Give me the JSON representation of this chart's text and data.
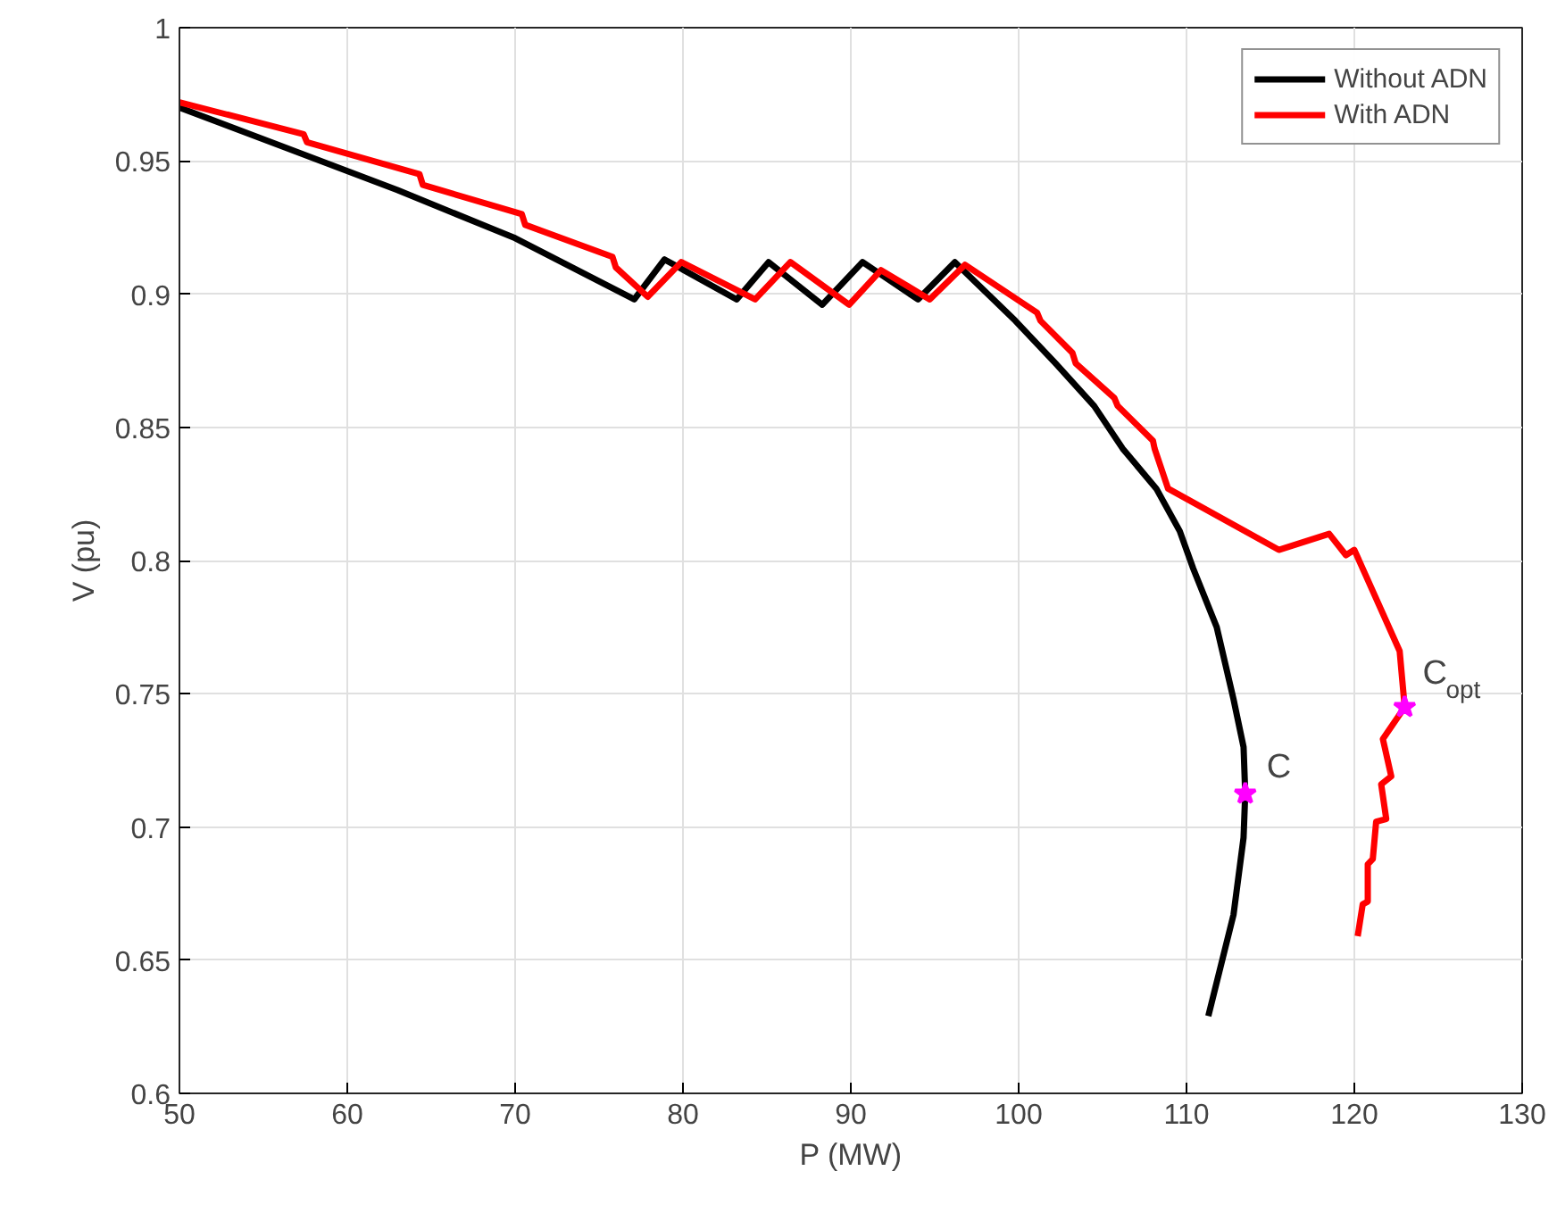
{
  "chart_data": {
    "type": "line",
    "xlabel": "P (MW)",
    "ylabel": "V (pu)",
    "xlim": [
      50,
      130
    ],
    "ylim": [
      0.6,
      1
    ],
    "xticks": [
      50,
      60,
      70,
      80,
      90,
      100,
      110,
      120,
      130
    ],
    "yticks": [
      0.6,
      0.65,
      0.7,
      0.75,
      0.8,
      0.85,
      0.9,
      0.95,
      1
    ],
    "grid": true,
    "legend": "top right",
    "line_style": "solid",
    "series": [
      {
        "name": "Without ADN",
        "color": "#000000",
        "x": [
          50,
          56.3,
          63,
          70,
          77.1,
          78.9,
          83.2,
          85.1,
          88.3,
          90.7,
          94.0,
          96.2,
          99.8,
          102.2,
          104.5,
          106.2,
          108.2,
          109.6,
          110.4,
          111.8,
          112.8,
          113.4,
          113.5,
          113.4,
          112.8,
          111.3
        ],
        "values": [
          0.97,
          0.955,
          0.939,
          0.921,
          0.898,
          0.913,
          0.898,
          0.912,
          0.896,
          0.912,
          0.898,
          0.912,
          0.89,
          0.874,
          0.858,
          0.842,
          0.827,
          0.811,
          0.797,
          0.775,
          0.748,
          0.73,
          0.7125,
          0.696,
          0.667,
          0.629
        ]
      },
      {
        "name": "With ADN",
        "color": "#ff0000",
        "x": [
          50,
          57.4,
          57.6,
          64.3,
          64.5,
          70.4,
          70.6,
          75.8,
          76.0,
          77.9,
          79.9,
          84.3,
          86.4,
          89.9,
          91.8,
          94.7,
          96.8,
          101.1,
          101.3,
          103.2,
          103.4,
          105.7,
          105.9,
          108.0,
          108.1,
          108.9,
          115.5,
          118.5,
          119.5,
          120.0,
          122.7,
          123.0,
          121.7,
          122.2,
          121.6,
          121.9,
          121.3,
          121.1,
          120.8,
          120.8,
          120.5,
          120.2
        ],
        "values": [
          0.972,
          0.96,
          0.957,
          0.945,
          0.941,
          0.93,
          0.926,
          0.914,
          0.91,
          0.899,
          0.912,
          0.898,
          0.912,
          0.896,
          0.909,
          0.898,
          0.911,
          0.893,
          0.89,
          0.878,
          0.874,
          0.861,
          0.858,
          0.845,
          0.842,
          0.827,
          0.804,
          0.81,
          0.802,
          0.804,
          0.766,
          0.745,
          0.733,
          0.719,
          0.716,
          0.703,
          0.702,
          0.688,
          0.686,
          0.672,
          0.671,
          0.659
        ]
      },
      {
        "type": "scatter",
        "marker": "star",
        "color": "#ff00ff",
        "x": [
          113.5,
          123.0
        ],
        "values": [
          0.7125,
          0.745
        ]
      }
    ],
    "annotations": [
      {
        "text": "C",
        "x": 113.5,
        "y": 0.7125
      },
      {
        "text": "C$_{opt}$",
        "x": 123.0,
        "y": 0.745
      }
    ]
  }
}
